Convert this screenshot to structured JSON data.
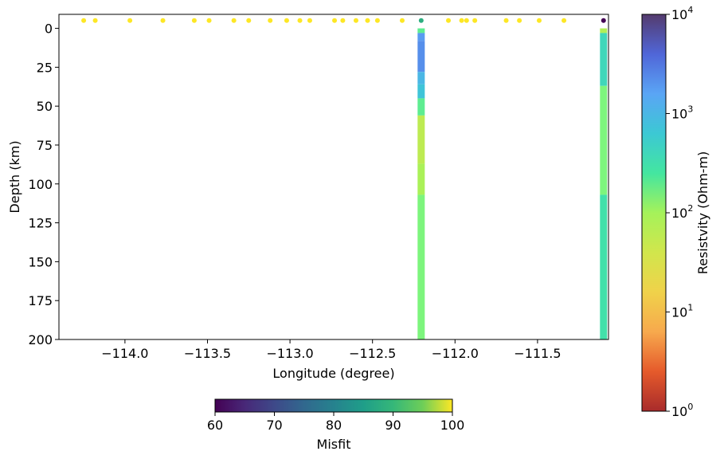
{
  "chart_data": [
    {
      "type": "resistivity depth section",
      "xlabel": "Longitude (degree)",
      "ylabel": "Depth (km)",
      "xlim": [
        -114.4,
        -111.07
      ],
      "ylim": [
        200,
        -9
      ],
      "x_ticks": [
        -114.0,
        -113.5,
        -113.0,
        -112.5,
        -112.0,
        -111.5
      ],
      "x_tick_labels": [
        "−114.0",
        "−113.5",
        "−113.0",
        "−112.5",
        "−112.0",
        "−111.5"
      ],
      "y_ticks": [
        0,
        25,
        50,
        75,
        100,
        125,
        150,
        175,
        200
      ],
      "y_tick_labels": [
        "0",
        "25",
        "50",
        "75",
        "100",
        "125",
        "150",
        "175",
        "200"
      ],
      "station_depth": -5,
      "stations": [
        {
          "lon": -114.25,
          "misfit": 100
        },
        {
          "lon": -114.18,
          "misfit": 100
        },
        {
          "lon": -113.97,
          "misfit": 100
        },
        {
          "lon": -113.77,
          "misfit": 100
        },
        {
          "lon": -113.58,
          "misfit": 100
        },
        {
          "lon": -113.49,
          "misfit": 100
        },
        {
          "lon": -113.34,
          "misfit": 100
        },
        {
          "lon": -113.25,
          "misfit": 100
        },
        {
          "lon": -113.12,
          "misfit": 100
        },
        {
          "lon": -113.02,
          "misfit": 100
        },
        {
          "lon": -112.94,
          "misfit": 100
        },
        {
          "lon": -112.88,
          "misfit": 100
        },
        {
          "lon": -112.73,
          "misfit": 100
        },
        {
          "lon": -112.68,
          "misfit": 100
        },
        {
          "lon": -112.6,
          "misfit": 100
        },
        {
          "lon": -112.53,
          "misfit": 100
        },
        {
          "lon": -112.47,
          "misfit": 100
        },
        {
          "lon": -112.32,
          "misfit": 100
        },
        {
          "lon": -112.205,
          "misfit": 88
        },
        {
          "lon": -112.04,
          "misfit": 100
        },
        {
          "lon": -111.96,
          "misfit": 100
        },
        {
          "lon": -111.93,
          "misfit": 100
        },
        {
          "lon": -111.88,
          "misfit": 100
        },
        {
          "lon": -111.69,
          "misfit": 100
        },
        {
          "lon": -111.61,
          "misfit": 100
        },
        {
          "lon": -111.49,
          "misfit": 100
        },
        {
          "lon": -111.34,
          "misfit": 100
        },
        {
          "lon": -111.1,
          "misfit": 60
        }
      ],
      "profiles": [
        {
          "lon": -112.205,
          "layers": [
            {
              "top": 0,
              "bottom": 3,
              "resistivity": 200
            },
            {
              "top": 3,
              "bottom": 8,
              "resistivity": 1800
            },
            {
              "top": 8,
              "bottom": 28,
              "resistivity": 2200
            },
            {
              "top": 28,
              "bottom": 36,
              "resistivity": 1000
            },
            {
              "top": 36,
              "bottom": 45,
              "resistivity": 700
            },
            {
              "top": 45,
              "bottom": 56,
              "resistivity": 200
            },
            {
              "top": 56,
              "bottom": 87,
              "resistivity": 60
            },
            {
              "top": 87,
              "bottom": 107,
              "resistivity": 90
            },
            {
              "top": 107,
              "bottom": 200,
              "resistivity": 150
            }
          ]
        },
        {
          "lon": -111.1,
          "layers": [
            {
              "top": 0,
              "bottom": 3,
              "resistivity": 80
            },
            {
              "top": 3,
              "bottom": 37,
              "resistivity": 400
            },
            {
              "top": 37,
              "bottom": 107,
              "resistivity": 150
            },
            {
              "top": 107,
              "bottom": 200,
              "resistivity": 300
            }
          ]
        }
      ]
    },
    {
      "type": "colorbar",
      "label": "Misfit",
      "colormap": "viridis",
      "range": [
        60,
        100
      ],
      "ticks": [
        60,
        70,
        80,
        90,
        100
      ],
      "tick_labels": [
        "60",
        "70",
        "80",
        "90",
        "100"
      ],
      "orientation": "horizontal"
    },
    {
      "type": "colorbar",
      "label": "Resistvity (Ohm-m)",
      "colormap": "turbo_r",
      "scale": "log",
      "range": [
        1,
        10000
      ],
      "ticks": [
        1,
        10,
        100,
        1000,
        10000
      ],
      "tick_labels": [
        {
          "base": "10",
          "exp": "0"
        },
        {
          "base": "10",
          "exp": "1"
        },
        {
          "base": "10",
          "exp": "2"
        },
        {
          "base": "10",
          "exp": "3"
        },
        {
          "base": "10",
          "exp": "4"
        }
      ],
      "orientation": "vertical"
    }
  ]
}
